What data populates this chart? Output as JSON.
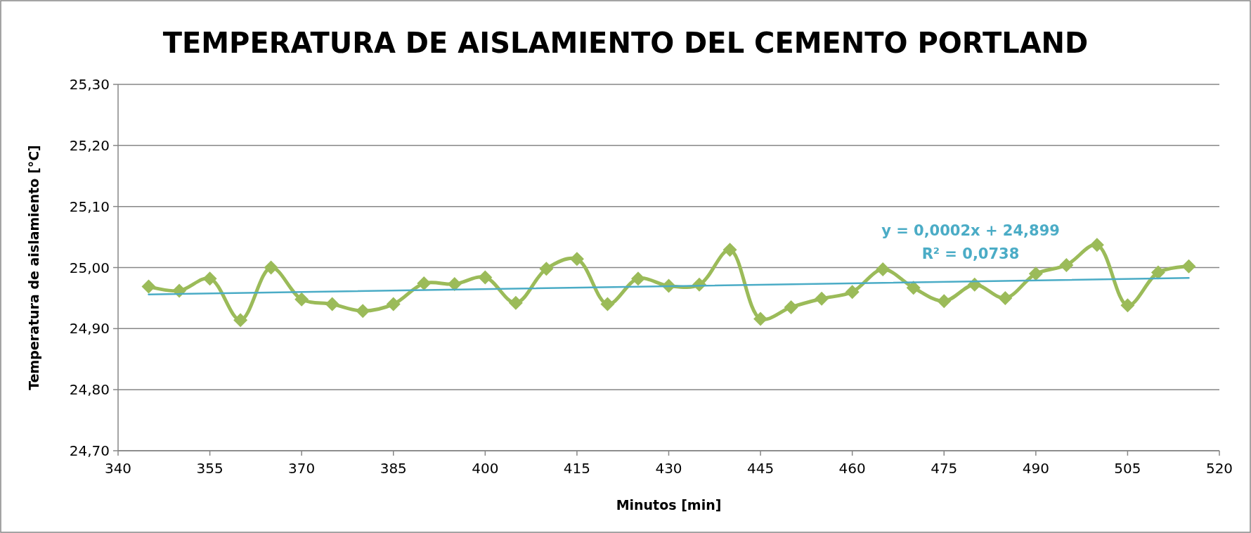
{
  "chart_data": {
    "type": "line",
    "title": "TEMPERATURA DE AISLAMIENTO DEL CEMENTO PORTLAND",
    "xlabel": "Minutos [min]",
    "ylabel": "Temperatura de aislamiento [°C]",
    "x": [
      345,
      350,
      355,
      360,
      365,
      370,
      375,
      380,
      385,
      390,
      395,
      400,
      405,
      410,
      415,
      420,
      425,
      430,
      435,
      440,
      445,
      450,
      455,
      460,
      465,
      470,
      475,
      480,
      485,
      490,
      495,
      500,
      505,
      510,
      515
    ],
    "series": [
      {
        "color": "#9bbb59",
        "values": [
          24.969,
          24.962,
          24.982,
          24.914,
          25.0,
          24.948,
          24.94,
          24.929,
          24.94,
          24.974,
          24.973,
          24.984,
          24.942,
          24.998,
          25.014,
          24.94,
          24.982,
          24.97,
          24.972,
          25.029,
          24.916,
          24.935,
          24.949,
          24.96,
          24.997,
          24.967,
          24.945,
          24.972,
          24.95,
          24.99,
          25.004,
          25.037,
          24.938,
          24.992,
          25.002
        ]
      },
      {
        "type": "line",
        "color": "#4bacc6",
        "marker": "none",
        "x": [
          345,
          515
        ],
        "values": [
          24.956,
          24.983
        ]
      }
    ],
    "marker": "diamond",
    "xlim": [
      340,
      520
    ],
    "xticks": [
      340,
      355,
      370,
      385,
      400,
      415,
      430,
      445,
      460,
      475,
      490,
      505,
      520
    ],
    "ylim": [
      24.7,
      25.3
    ],
    "yticks": [
      {
        "value": 24.7,
        "label": "24,70"
      },
      {
        "value": 24.8,
        "label": "24,80"
      },
      {
        "value": 24.9,
        "label": "24,90"
      },
      {
        "value": 25.0,
        "label": "25,00"
      },
      {
        "value": 25.1,
        "label": "25,10"
      },
      {
        "value": 25.2,
        "label": "25,20"
      },
      {
        "value": 25.3,
        "label": "25,30"
      }
    ],
    "grid": "y",
    "annotations": [
      "y = 0,0002x + 24,899",
      "R² = 0,0738"
    ]
  }
}
